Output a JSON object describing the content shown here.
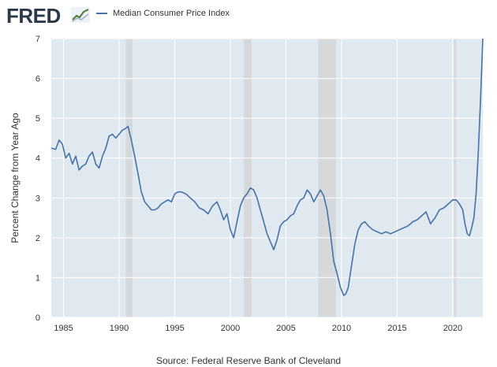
{
  "header": {
    "logo_text": "FRED",
    "logo_icon": "fred-line-graph-icon"
  },
  "legend": {
    "series_label": "Median Consumer Price Index"
  },
  "source": "Source: Federal Reserve Bank of Cleveland",
  "colors": {
    "series": "#4572a7",
    "plot_bg": "#e1e9f0",
    "recession": "#d6d9dc"
  },
  "chart_data": {
    "type": "line",
    "title": "",
    "xlabel": "",
    "ylabel": "Percent Change from Year Ago",
    "xlim": [
      1983.9,
      2022.7
    ],
    "ylim": [
      0,
      7
    ],
    "xticks": [
      1985,
      1990,
      1995,
      2000,
      2005,
      2010,
      2015,
      2020
    ],
    "yticks": [
      0,
      1,
      2,
      3,
      4,
      5,
      6,
      7
    ],
    "grid": true,
    "legend_position": "top-left",
    "recessions": [
      [
        1990.6,
        1991.2
      ],
      [
        2001.2,
        2001.9
      ],
      [
        2007.9,
        2009.5
      ],
      [
        2020.1,
        2020.3
      ]
    ],
    "series": [
      {
        "name": "Median Consumer Price Index",
        "x": [
          1983.9,
          1984.3,
          1984.6,
          1984.9,
          1985.2,
          1985.5,
          1985.8,
          1986.1,
          1986.4,
          1986.7,
          1987.0,
          1987.3,
          1987.6,
          1987.9,
          1988.2,
          1988.5,
          1988.8,
          1989.1,
          1989.4,
          1989.7,
          1990.0,
          1990.3,
          1990.6,
          1990.8,
          1991.1,
          1991.4,
          1991.7,
          1992.0,
          1992.3,
          1992.6,
          1992.9,
          1993.2,
          1993.5,
          1993.8,
          1994.1,
          1994.4,
          1994.7,
          1995.0,
          1995.3,
          1995.6,
          1996.0,
          1996.4,
          1996.8,
          1997.2,
          1997.6,
          1998.0,
          1998.4,
          1998.8,
          1999.1,
          1999.4,
          1999.7,
          2000.0,
          2000.3,
          2000.6,
          2000.9,
          2001.2,
          2001.5,
          2001.8,
          2002.1,
          2002.4,
          2002.7,
          2003.0,
          2003.3,
          2003.6,
          2003.9,
          2004.2,
          2004.5,
          2004.8,
          2005.1,
          2005.4,
          2005.7,
          2006.0,
          2006.3,
          2006.6,
          2006.9,
          2007.2,
          2007.5,
          2007.8,
          2008.1,
          2008.4,
          2008.7,
          2009.0,
          2009.3,
          2009.6,
          2009.9,
          2010.2,
          2010.4,
          2010.6,
          2010.9,
          2011.2,
          2011.5,
          2011.8,
          2012.1,
          2012.4,
          2012.8,
          2013.2,
          2013.6,
          2014.0,
          2014.4,
          2014.8,
          2015.2,
          2015.6,
          2016.0,
          2016.4,
          2016.8,
          2017.2,
          2017.6,
          2018.0,
          2018.4,
          2018.8,
          2019.2,
          2019.6,
          2020.0,
          2020.3,
          2020.6,
          2020.9,
          2021.1,
          2021.3,
          2021.5,
          2021.7,
          2021.9,
          2022.1,
          2022.3,
          2022.5,
          2022.7
        ],
        "y": [
          4.25,
          4.22,
          4.45,
          4.35,
          4.0,
          4.12,
          3.85,
          4.05,
          3.7,
          3.8,
          3.85,
          4.05,
          4.15,
          3.85,
          3.75,
          4.05,
          4.25,
          4.55,
          4.6,
          4.5,
          4.6,
          4.7,
          4.75,
          4.8,
          4.45,
          4.05,
          3.6,
          3.15,
          2.9,
          2.8,
          2.7,
          2.7,
          2.75,
          2.85,
          2.9,
          2.95,
          2.9,
          3.1,
          3.15,
          3.15,
          3.1,
          3.0,
          2.9,
          2.75,
          2.7,
          2.6,
          2.8,
          2.9,
          2.7,
          2.45,
          2.6,
          2.2,
          2.0,
          2.4,
          2.8,
          3.0,
          3.1,
          3.25,
          3.2,
          3.0,
          2.7,
          2.4,
          2.1,
          1.9,
          1.7,
          1.95,
          2.3,
          2.4,
          2.45,
          2.55,
          2.6,
          2.8,
          2.95,
          3.0,
          3.2,
          3.1,
          2.9,
          3.05,
          3.2,
          3.05,
          2.7,
          2.1,
          1.4,
          1.1,
          0.75,
          0.55,
          0.6,
          0.75,
          1.3,
          1.85,
          2.2,
          2.35,
          2.4,
          2.3,
          2.2,
          2.15,
          2.1,
          2.15,
          2.1,
          2.15,
          2.2,
          2.25,
          2.3,
          2.4,
          2.45,
          2.55,
          2.65,
          2.35,
          2.5,
          2.7,
          2.75,
          2.85,
          2.95,
          2.95,
          2.85,
          2.7,
          2.35,
          2.1,
          2.05,
          2.25,
          2.5,
          3.1,
          4.2,
          5.5,
          7.0
        ]
      }
    ]
  }
}
